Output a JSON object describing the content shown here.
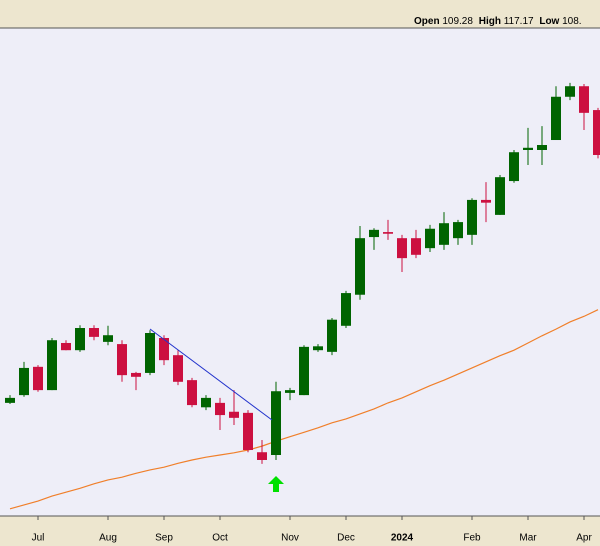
{
  "header": {
    "items": [
      {
        "label": "Open",
        "value": 109.28
      },
      {
        "label": "High",
        "value": 117.17
      },
      {
        "label": "Low",
        "value": "108."
      }
    ]
  },
  "chart_data": {
    "type": "candlestick",
    "categories": [
      null,
      null,
      "Jul",
      null,
      null,
      null,
      null,
      "Aug",
      null,
      null,
      null,
      "Sep",
      null,
      null,
      null,
      "Oct",
      null,
      null,
      null,
      null,
      "Nov",
      null,
      null,
      null,
      "Dec",
      null,
      null,
      null,
      "2024",
      null,
      null,
      null,
      null,
      "Feb",
      null,
      null,
      null,
      "Mar",
      null,
      null,
      null,
      "Apr",
      null
    ],
    "ylim": [
      44,
      132
    ],
    "up_color": "#006400",
    "down_color": "#cc1040",
    "open": [
      64.4,
      65.8,
      70.9,
      66.7,
      75.2,
      73.9,
      77.9,
      75.4,
      75.0,
      69.8,
      69.8,
      76.1,
      73.0,
      68.5,
      63.6,
      64.4,
      62.8,
      62.6,
      55.5,
      55.0,
      66.2,
      65.8,
      73.9,
      73.6,
      78.3,
      83.9,
      94.3,
      95.2,
      94.1,
      94.1,
      92.3,
      92.9,
      94.1,
      94.7,
      101.0,
      98.3,
      104.4,
      110.0,
      110.0,
      111.8,
      119.6,
      121.5,
      117.2
    ],
    "high": [
      65.8,
      71.8,
      71.2,
      76.1,
      75.7,
      78.4,
      78.4,
      78.3,
      75.7,
      70.0,
      77.5,
      76.6,
      73.9,
      68.9,
      65.8,
      65.3,
      66.7,
      63.1,
      57.7,
      68.2,
      67.1,
      74.8,
      75.0,
      79.7,
      84.6,
      96.3,
      95.9,
      97.4,
      94.7,
      95.6,
      96.5,
      98.8,
      97.4,
      101.3,
      104.2,
      105.5,
      110.0,
      114.0,
      114.3,
      121.5,
      122.1,
      121.9,
      117.6
    ],
    "low": [
      64.2,
      65.5,
      66.4,
      66.7,
      73.9,
      73.6,
      75.7,
      74.8,
      68.2,
      66.7,
      69.4,
      71.2,
      67.6,
      63.6,
      63.1,
      59.5,
      60.4,
      55.5,
      53.4,
      54.1,
      64.9,
      65.8,
      73.6,
      73.0,
      77.9,
      83.0,
      92.0,
      93.8,
      88.0,
      90.5,
      91.6,
      92.0,
      92.9,
      92.9,
      97.0,
      98.3,
      104.1,
      107.3,
      107.3,
      111.8,
      119.0,
      113.6,
      108.5
    ],
    "close": [
      65.3,
      70.7,
      66.7,
      75.7,
      73.9,
      77.9,
      76.3,
      76.6,
      69.4,
      69.1,
      77.0,
      72.1,
      68.2,
      64.0,
      65.3,
      62.2,
      61.7,
      55.9,
      54.1,
      66.5,
      66.7,
      74.5,
      74.6,
      79.4,
      84.2,
      94.1,
      95.6,
      94.9,
      90.5,
      91.1,
      95.8,
      96.8,
      97.0,
      101.0,
      100.5,
      105.1,
      109.6,
      110.4,
      110.9,
      119.6,
      121.5,
      116.7,
      109.1
    ],
    "moving_average": {
      "color": "#f07f2a",
      "values": [
        45.3,
        46.0,
        46.7,
        47.6,
        48.3,
        49.0,
        49.8,
        50.5,
        51.0,
        51.7,
        52.3,
        52.8,
        53.5,
        54.1,
        54.6,
        55.0,
        55.4,
        55.9,
        56.6,
        57.5,
        58.3,
        59.1,
        59.9,
        60.8,
        61.5,
        62.4,
        63.3,
        64.4,
        65.3,
        66.4,
        67.5,
        68.5,
        69.6,
        70.7,
        71.8,
        72.9,
        73.9,
        75.2,
        76.5,
        77.7,
        79.0,
        80.0,
        81.2
      ]
    }
  }
}
